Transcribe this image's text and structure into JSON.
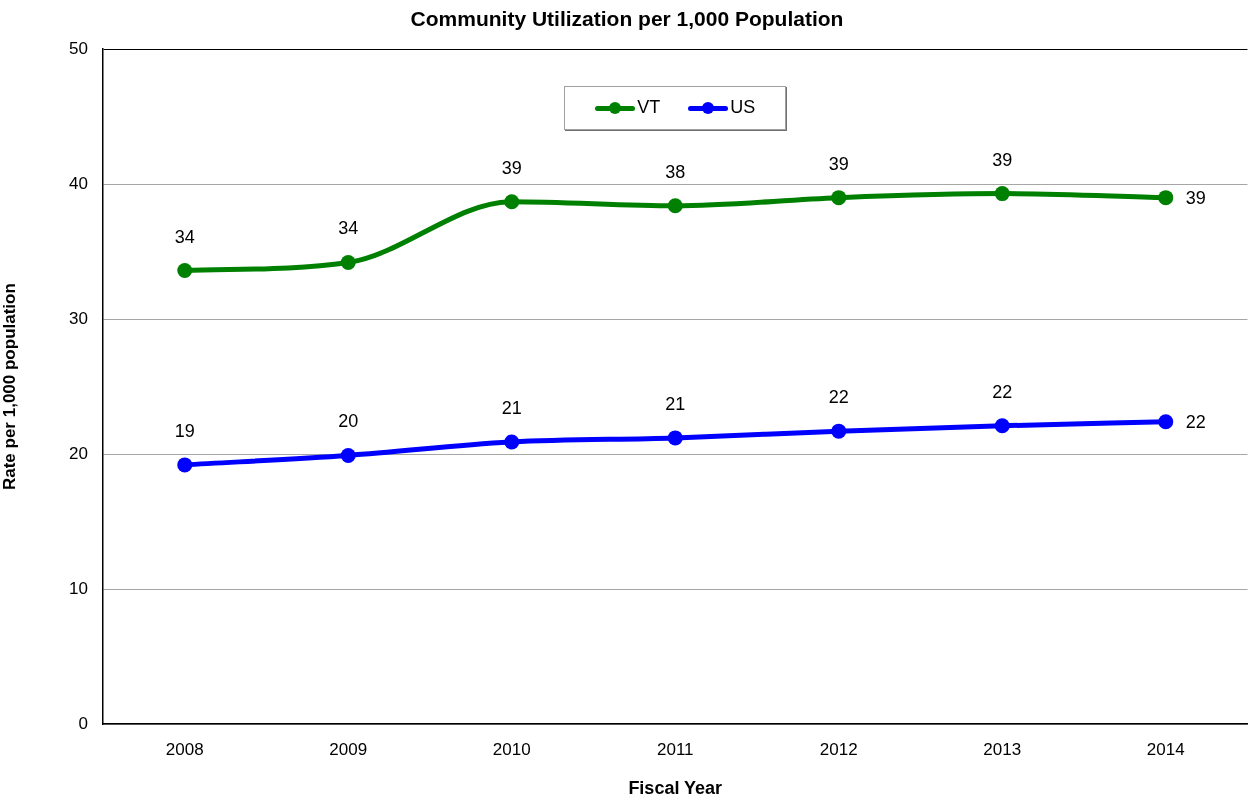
{
  "chart_data": {
    "type": "line",
    "title": "Community Utilization per 1,000 Population",
    "xlabel": "Fiscal Year",
    "ylabel": "Rate per 1,000 population",
    "categories": [
      "2008",
      "2009",
      "2010",
      "2011",
      "2012",
      "2013",
      "2014"
    ],
    "series": [
      {
        "name": "VT",
        "color": "#008000",
        "values": [
          33.6,
          34.2,
          38.7,
          38.4,
          39.0,
          39.3,
          39.0
        ],
        "value_labels": [
          "34",
          "34",
          "39",
          "38",
          "39",
          "39",
          "39"
        ]
      },
      {
        "name": "US",
        "color": "#0000ff",
        "values": [
          19.2,
          19.9,
          20.9,
          21.2,
          21.7,
          22.1,
          22.4
        ],
        "value_labels": [
          "19",
          "20",
          "21",
          "21",
          "22",
          "22",
          "22"
        ]
      }
    ],
    "ylim": [
      0,
      50
    ],
    "yticks": [
      0,
      10,
      20,
      30,
      40,
      50
    ],
    "grid": "y",
    "legend": "top",
    "marker": "circle",
    "line_style": "solid"
  }
}
